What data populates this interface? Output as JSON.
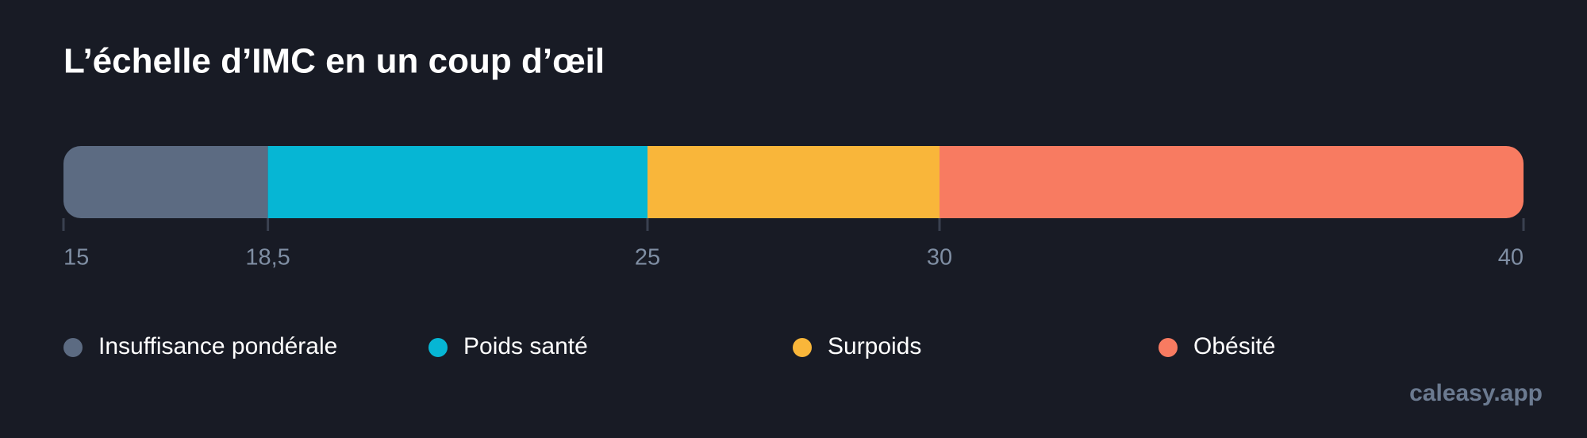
{
  "chart_data": {
    "type": "stacked-bar",
    "title": "L’échelle d’IMC en un coup d’œil",
    "xlim": [
      15,
      40
    ],
    "xticks": [
      15,
      {
        "value": 18.5,
        "label": "18,5"
      },
      25,
      30,
      40
    ],
    "series": [
      {
        "name": "Insuffisance pondérale",
        "color": "#5c6b82",
        "values": [
          3.5
        ]
      },
      {
        "name": "Poids santé",
        "color": "#06b6d4",
        "values": [
          6.5
        ]
      },
      {
        "name": "Surpoids",
        "color": "#f9b63a",
        "values": [
          5
        ]
      },
      {
        "name": "Obésité",
        "color": "#f87b61",
        "values": [
          10
        ]
      }
    ],
    "watermark": "caleasy.app"
  }
}
